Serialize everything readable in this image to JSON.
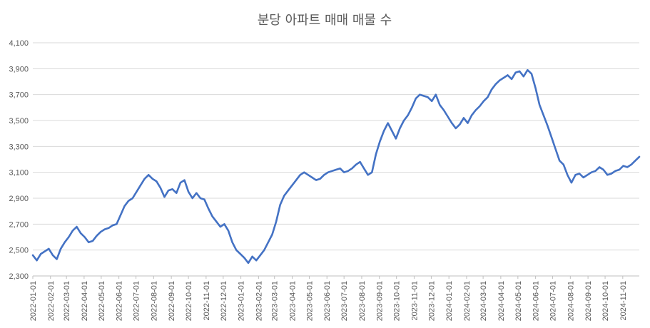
{
  "chart_data": {
    "type": "line",
    "title": "분당 아파트 매매 매물 수",
    "xlabel": "",
    "ylabel": "",
    "ylim": [
      2300,
      4100
    ],
    "yticks": [
      "2,300",
      "2,500",
      "2,700",
      "2,900",
      "3,100",
      "3,300",
      "3,500",
      "3,700",
      "3,900",
      "4,100"
    ],
    "grid": true,
    "legend": "none",
    "x_date_range": [
      "2022-01-01",
      "2024-11-30"
    ],
    "xticks": [
      "2022-01-01",
      "2022-02-01",
      "2022-03-01",
      "2022-04-01",
      "2022-05-01",
      "2022-06-01",
      "2022-07-01",
      "2022-08-01",
      "2022-09-01",
      "2022-10-01",
      "2022-11-01",
      "2022-12-01",
      "2023-01-01",
      "2023-02-01",
      "2023-03-01",
      "2023-04-01",
      "2023-05-01",
      "2023-06-01",
      "2023-07-01",
      "2023-08-01",
      "2023-09-01",
      "2023-10-01",
      "2023-11-01",
      "2023-12-01",
      "2024-01-01",
      "2024-02-01",
      "2024-03-01",
      "2024-04-01",
      "2024-05-01",
      "2024-06-01",
      "2024-07-01",
      "2024-08-01",
      "2024-09-01",
      "2024-10-01",
      "2024-11-01"
    ],
    "line_color": "#4472c4",
    "series": [
      {
        "x": [
          "2022-01-01",
          "2022-01-08",
          "2022-01-15",
          "2022-01-22",
          "2022-01-29",
          "2022-02-05",
          "2022-02-12",
          "2022-02-19",
          "2022-02-26",
          "2022-03-05",
          "2022-03-12",
          "2022-03-19",
          "2022-03-26",
          "2022-04-02",
          "2022-04-09",
          "2022-04-16",
          "2022-04-23",
          "2022-04-30",
          "2022-05-07",
          "2022-05-14",
          "2022-05-21",
          "2022-05-28",
          "2022-06-04",
          "2022-06-11",
          "2022-06-18",
          "2022-06-25",
          "2022-07-02",
          "2022-07-09",
          "2022-07-16",
          "2022-07-23",
          "2022-07-30",
          "2022-08-06",
          "2022-08-13",
          "2022-08-20",
          "2022-08-27",
          "2022-09-03",
          "2022-09-10",
          "2022-09-17",
          "2022-09-24",
          "2022-10-01",
          "2022-10-08",
          "2022-10-15",
          "2022-10-22",
          "2022-10-29",
          "2022-11-05",
          "2022-11-12",
          "2022-11-19",
          "2022-11-26",
          "2022-12-03",
          "2022-12-10",
          "2022-12-17",
          "2022-12-24",
          "2022-12-31",
          "2023-01-07",
          "2023-01-14",
          "2023-01-21",
          "2023-01-28",
          "2023-02-04",
          "2023-02-11",
          "2023-02-18",
          "2023-02-25",
          "2023-03-04",
          "2023-03-11",
          "2023-03-18",
          "2023-03-25",
          "2023-04-01",
          "2023-04-08",
          "2023-04-15",
          "2023-04-22",
          "2023-04-29",
          "2023-05-06",
          "2023-05-13",
          "2023-05-20",
          "2023-05-27",
          "2023-06-03",
          "2023-06-10",
          "2023-06-17",
          "2023-06-24",
          "2023-07-01",
          "2023-07-08",
          "2023-07-15",
          "2023-07-22",
          "2023-07-29",
          "2023-08-05",
          "2023-08-12",
          "2023-08-19",
          "2023-08-26",
          "2023-09-02",
          "2023-09-09",
          "2023-09-16",
          "2023-09-23",
          "2023-09-30",
          "2023-10-07",
          "2023-10-14",
          "2023-10-21",
          "2023-10-28",
          "2023-11-04",
          "2023-11-11",
          "2023-11-18",
          "2023-11-25",
          "2023-12-02",
          "2023-12-09",
          "2023-12-16",
          "2023-12-23",
          "2023-12-30",
          "2024-01-06",
          "2024-01-13",
          "2024-01-20",
          "2024-01-27",
          "2024-02-03",
          "2024-02-10",
          "2024-02-17",
          "2024-02-24",
          "2024-03-02",
          "2024-03-09",
          "2024-03-16",
          "2024-03-23",
          "2024-03-30",
          "2024-04-06",
          "2024-04-13",
          "2024-04-20",
          "2024-04-27",
          "2024-05-04",
          "2024-05-11",
          "2024-05-18",
          "2024-05-25",
          "2024-06-01",
          "2024-06-08",
          "2024-06-15",
          "2024-06-22",
          "2024-06-29",
          "2024-07-06",
          "2024-07-13",
          "2024-07-20",
          "2024-07-27",
          "2024-08-03",
          "2024-08-10",
          "2024-08-17",
          "2024-08-24",
          "2024-08-31",
          "2024-09-07",
          "2024-09-14",
          "2024-09-21",
          "2024-09-28",
          "2024-10-05",
          "2024-10-12",
          "2024-10-19",
          "2024-10-26",
          "2024-11-02",
          "2024-11-09",
          "2024-11-16",
          "2024-11-23",
          "2024-11-30"
        ],
        "values": [
          2460,
          2420,
          2470,
          2490,
          2510,
          2460,
          2430,
          2510,
          2560,
          2600,
          2650,
          2680,
          2630,
          2600,
          2560,
          2570,
          2610,
          2640,
          2660,
          2670,
          2690,
          2700,
          2770,
          2840,
          2880,
          2900,
          2950,
          3000,
          3050,
          3080,
          3050,
          3030,
          2980,
          2910,
          2960,
          2970,
          2940,
          3020,
          3040,
          2950,
          2900,
          2940,
          2900,
          2890,
          2820,
          2760,
          2720,
          2680,
          2700,
          2650,
          2560,
          2500,
          2470,
          2440,
          2400,
          2450,
          2420,
          2460,
          2500,
          2560,
          2620,
          2720,
          2850,
          2920,
          2960,
          3000,
          3040,
          3080,
          3100,
          3080,
          3060,
          3040,
          3050,
          3080,
          3100,
          3110,
          3120,
          3130,
          3100,
          3110,
          3130,
          3160,
          3180,
          3130,
          3080,
          3100,
          3240,
          3340,
          3420,
          3480,
          3420,
          3360,
          3440,
          3500,
          3540,
          3600,
          3670,
          3700,
          3690,
          3680,
          3650,
          3700,
          3620,
          3580,
          3530,
          3480,
          3440,
          3470,
          3520,
          3480,
          3540,
          3580,
          3610,
          3650,
          3680,
          3740,
          3780,
          3810,
          3830,
          3850,
          3820,
          3870,
          3880,
          3840,
          3890,
          3860,
          3750,
          3620,
          3540,
          3460,
          3370,
          3280,
          3190,
          3160,
          3080,
          3020,
          3080,
          3090,
          3060,
          3080,
          3100,
          3110,
          3140,
          3120,
          3080,
          3090,
          3110,
          3120,
          3150,
          3140,
          3160,
          3190,
          3220
        ]
      }
    ]
  }
}
